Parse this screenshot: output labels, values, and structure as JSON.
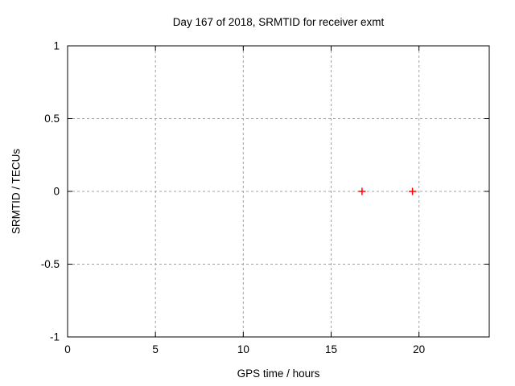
{
  "chart_data": {
    "type": "scatter",
    "title": "Day 167 of 2018, SRMTID for receiver exmt",
    "xlabel": "GPS time / hours",
    "ylabel": "SRMTID / TECUs",
    "xlim": [
      0,
      24
    ],
    "ylim": [
      -1,
      1
    ],
    "xticks": [
      {
        "value": 0,
        "label": "0"
      },
      {
        "value": 5,
        "label": "5"
      },
      {
        "value": 10,
        "label": "10"
      },
      {
        "value": 15,
        "label": "15"
      },
      {
        "value": 20,
        "label": "20"
      }
    ],
    "yticks": [
      {
        "value": -1,
        "label": "-1"
      },
      {
        "value": -0.5,
        "label": "-0.5"
      },
      {
        "value": 0,
        "label": "0"
      },
      {
        "value": 0.5,
        "label": "0.5"
      },
      {
        "value": 1,
        "label": "1"
      }
    ],
    "grid": true,
    "legend_position": "none",
    "series": [
      {
        "name": "SRMTID",
        "marker": "plus",
        "color": "#ff0000",
        "points": [
          {
            "x": 16.76,
            "y": 0
          },
          {
            "x": 19.63,
            "y": 0
          }
        ]
      }
    ],
    "colors": {
      "background": "#ffffff",
      "plot_border": "#000000",
      "grid": "#a0a0a0",
      "tick_text": "#000000"
    }
  }
}
